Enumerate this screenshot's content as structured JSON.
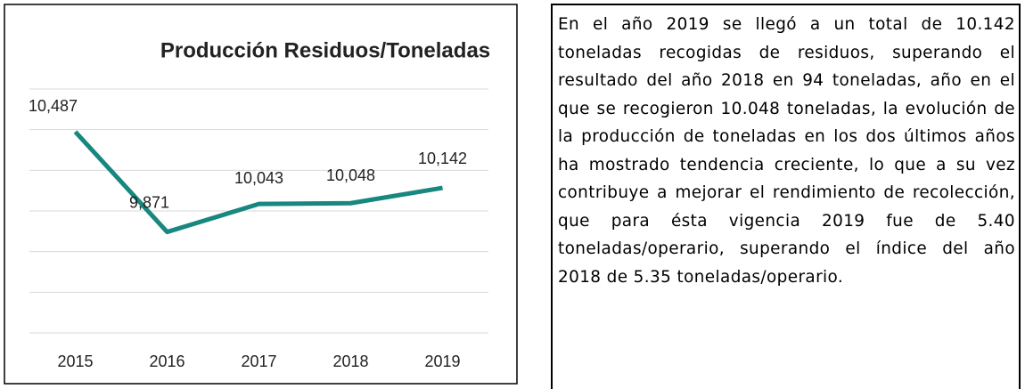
{
  "chart_data": {
    "type": "line",
    "title": "Producción Residuos/Toneladas",
    "categories": [
      "2015",
      "2016",
      "2017",
      "2018",
      "2019"
    ],
    "values": [
      10487,
      9871,
      10043,
      10048,
      10142
    ],
    "value_labels": [
      "10,487",
      "9,871",
      "10,043",
      "10,048",
      "10,142"
    ],
    "color": "#17877f",
    "ylim": [
      9250,
      10750
    ],
    "yticks": [
      9250,
      9500,
      9750,
      10000,
      10250,
      10500,
      10750
    ],
    "ytick_labels": false,
    "grid": true,
    "legend": false
  },
  "text": "En el año 2019 se llegó a un total de 10.142 toneladas recogidas de residuos, superando el resultado del año 2018 en 94 toneladas, año en el que se recogieron 10.048 toneladas, la evolución de la producción de toneladas en los dos últimos años ha mostrado tendencia creciente, lo que a su vez contribuye a mejorar el rendimiento de recolección, que para ésta vigencia 2019 fue de 5.40 toneladas/operario, superando el índice del año 2018 de 5.35 toneladas/operario."
}
